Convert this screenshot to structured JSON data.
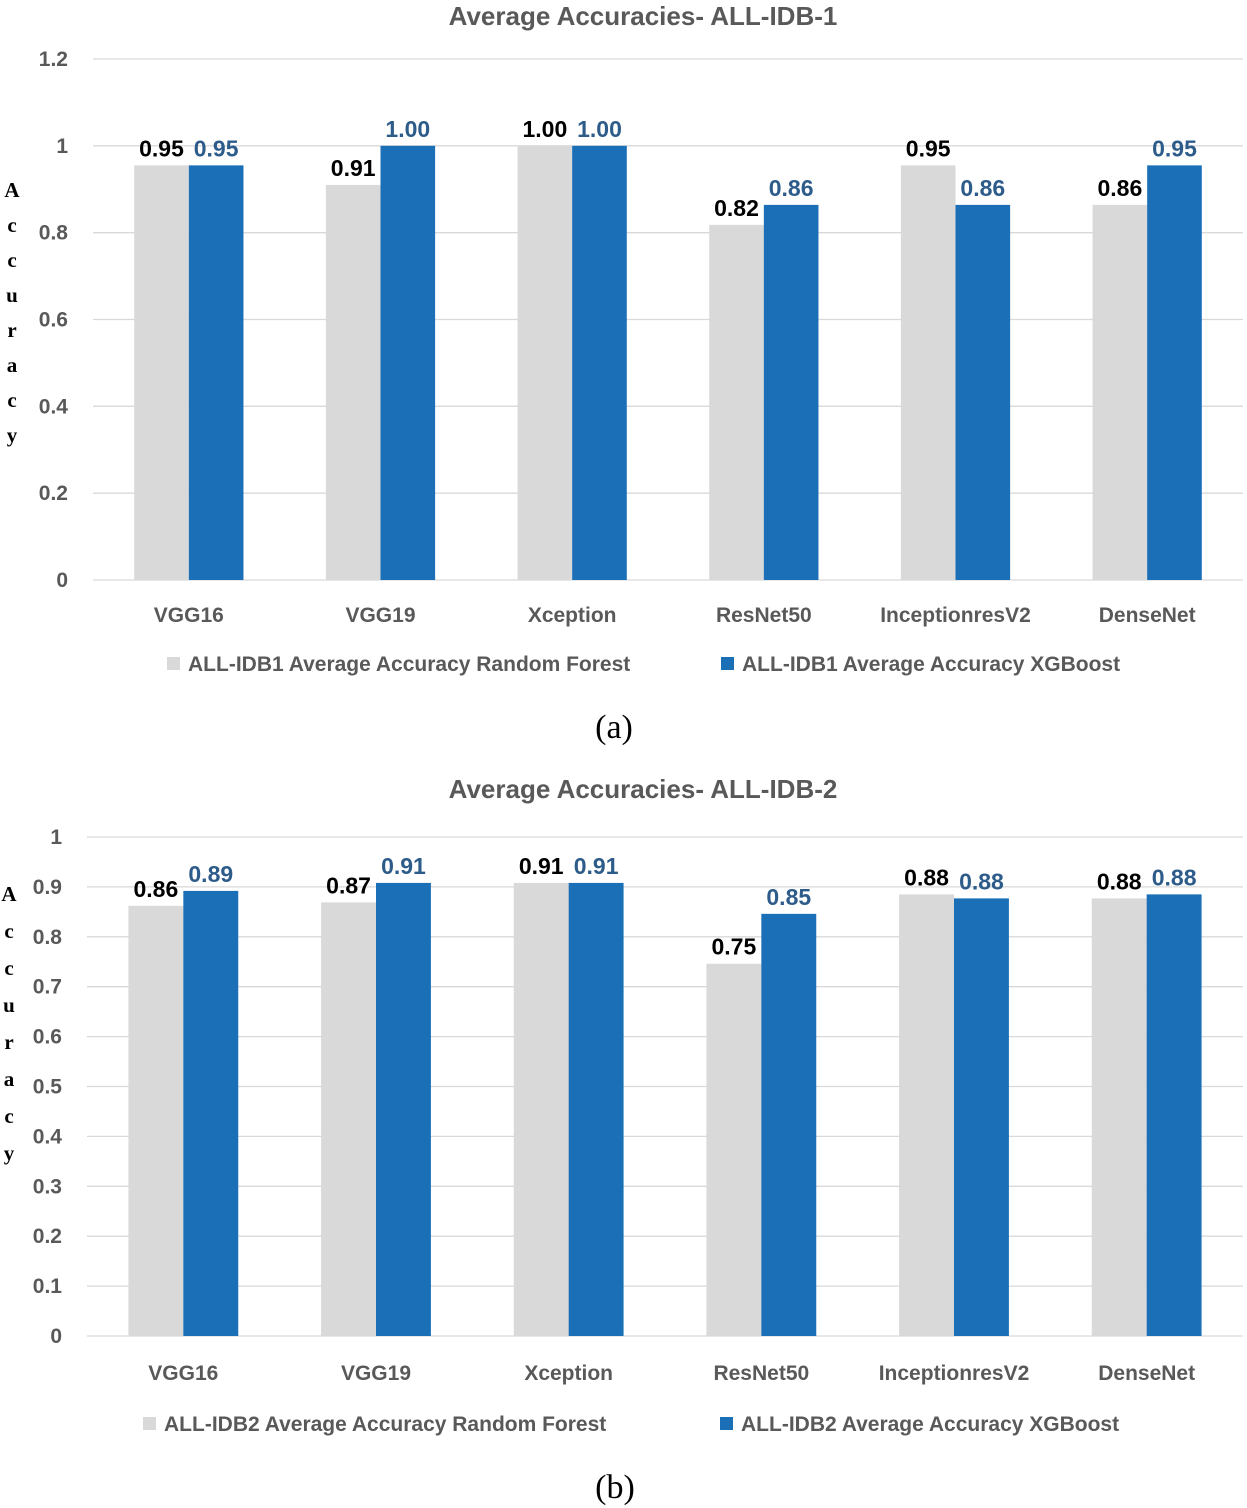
{
  "chart_data": [
    {
      "type": "bar",
      "title": "Average Accuracies- ALL-IDB-1",
      "ylabel": "Accuracy",
      "xlabel": "",
      "ylim": [
        0,
        1.2
      ],
      "yticks": [
        "0",
        "0.2",
        "0.4",
        "0.6",
        "0.8",
        "1",
        "1.2"
      ],
      "categories": [
        "VGG16",
        "VGG19",
        "Xception",
        "ResNet50",
        "InceptionresV2",
        "DenseNet"
      ],
      "series": [
        {
          "name": "ALL-IDB1 Average Accuracy Random Forest",
          "color": "#d9d9d9",
          "label_color": "#000000",
          "values": [
            0.955,
            0.91,
            1.0,
            0.818,
            0.955,
            0.864
          ],
          "labels": [
            "0.95",
            "0.91",
            "1.00",
            "0.82",
            "0.95",
            "0.86"
          ]
        },
        {
          "name": "ALL-IDB1 Average Accuracy XGBoost",
          "color": "#1a6fb7",
          "label_color": "#2e5c8a",
          "values": [
            0.955,
            1.0,
            1.0,
            0.864,
            0.864,
            0.955
          ],
          "labels": [
            "0.95",
            "1.00",
            "1.00",
            "0.86",
            "0.86",
            "0.95"
          ]
        }
      ],
      "legend_position": "bottom",
      "grid": true,
      "caption": "(a)"
    },
    {
      "type": "bar",
      "title": "Average Accuracies- ALL-IDB-2",
      "ylabel": "Accuracy",
      "xlabel": "",
      "ylim": [
        0,
        1
      ],
      "yticks": [
        "0",
        "0.1",
        "0.2",
        "0.3",
        "0.4",
        "0.5",
        "0.6",
        "0.7",
        "0.8",
        "0.9",
        "1"
      ],
      "categories": [
        "VGG16",
        "VGG19",
        "Xception",
        "ResNet50",
        "InceptionresV2",
        "DenseNet"
      ],
      "series": [
        {
          "name": "ALL-IDB2 Average Accuracy Random Forest",
          "color": "#d9d9d9",
          "label_color": "#000000",
          "values": [
            0.862,
            0.869,
            0.908,
            0.746,
            0.885,
            0.877
          ],
          "labels": [
            "0.86",
            "0.87",
            "0.91",
            "0.75",
            "0.88",
            "0.88"
          ]
        },
        {
          "name": "ALL-IDB2 Average Accuracy XGBoost",
          "color": "#1a6fb7",
          "label_color": "#2e5c8a",
          "values": [
            0.892,
            0.908,
            0.908,
            0.846,
            0.877,
            0.885
          ],
          "labels": [
            "0.89",
            "0.91",
            "0.91",
            "0.85",
            "0.88",
            "0.88"
          ]
        }
      ],
      "legend_position": "bottom",
      "grid": true,
      "caption": "(b)"
    }
  ]
}
